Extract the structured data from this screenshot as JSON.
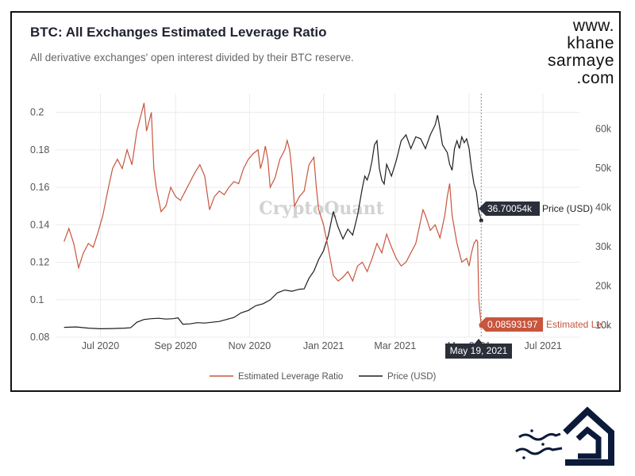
{
  "brand": {
    "lines": [
      "www.",
      "khane",
      "sarmaye",
      ".com"
    ]
  },
  "chart": {
    "title": "BTC: All Exchanges Estimated Leverage Ratio",
    "subtitle": "All derivative exchanges' open interest divided by their BTC reserve.",
    "watermark": "CryptoQuant"
  },
  "tooltips": {
    "price_value": "36.70054k",
    "price_name": "Price (USD)",
    "ratio_value": "0.08593197",
    "ratio_name": "Estimated Le...",
    "date": "May 19, 2021"
  },
  "colors": {
    "ratio": "#c8553d",
    "price": "#1e1e1e",
    "tooltip_dark": "#2a2f3a"
  },
  "logo": {
    "icon": "khanesarmaye-house-logo-icon"
  },
  "chart_data": {
    "type": "line",
    "title": "BTC: All Exchanges Estimated Leverage Ratio",
    "x_start": "2020-06-01",
    "x_end": "2021-05-19",
    "x_ticks": [
      "Jul 2020",
      "Sep 2020",
      "Nov 2020",
      "Jan 2021",
      "Mar 2021",
      "May 2021",
      "Jul 2021"
    ],
    "x_tick_days": [
      30,
      92,
      153,
      214,
      273,
      334,
      395
    ],
    "x_range_days": [
      -7,
      425
    ],
    "y_left": {
      "ticks": [
        0.08,
        0.1,
        0.12,
        0.14,
        0.16,
        0.18,
        0.2
      ],
      "range": [
        0.08,
        0.21
      ]
    },
    "y_right": {
      "ticks": [
        "10k",
        "20k",
        "30k",
        "40k",
        "50k",
        "60k"
      ],
      "tick_values": [
        10000,
        20000,
        30000,
        40000,
        50000,
        60000
      ],
      "range": [
        7000,
        69000
      ]
    },
    "series": [
      {
        "name": "Estimated Leverage Ratio",
        "axis": "left",
        "color": "#c8553d",
        "points": [
          [
            0,
            0.131
          ],
          [
            4,
            0.138
          ],
          [
            8,
            0.13
          ],
          [
            12,
            0.117
          ],
          [
            16,
            0.125
          ],
          [
            20,
            0.13
          ],
          [
            24,
            0.128
          ],
          [
            28,
            0.136
          ],
          [
            32,
            0.145
          ],
          [
            36,
            0.158
          ],
          [
            40,
            0.17
          ],
          [
            44,
            0.175
          ],
          [
            48,
            0.17
          ],
          [
            52,
            0.18
          ],
          [
            56,
            0.172
          ],
          [
            60,
            0.19
          ],
          [
            64,
            0.2
          ],
          [
            66,
            0.205
          ],
          [
            68,
            0.19
          ],
          [
            72,
            0.2
          ],
          [
            74,
            0.17
          ],
          [
            76,
            0.16
          ],
          [
            80,
            0.147
          ],
          [
            84,
            0.15
          ],
          [
            88,
            0.16
          ],
          [
            92,
            0.155
          ],
          [
            96,
            0.153
          ],
          [
            100,
            0.158
          ],
          [
            104,
            0.163
          ],
          [
            108,
            0.168
          ],
          [
            112,
            0.172
          ],
          [
            116,
            0.166
          ],
          [
            120,
            0.148
          ],
          [
            124,
            0.155
          ],
          [
            128,
            0.158
          ],
          [
            132,
            0.156
          ],
          [
            136,
            0.16
          ],
          [
            140,
            0.163
          ],
          [
            144,
            0.162
          ],
          [
            148,
            0.17
          ],
          [
            152,
            0.175
          ],
          [
            156,
            0.178
          ],
          [
            160,
            0.18
          ],
          [
            162,
            0.17
          ],
          [
            164,
            0.175
          ],
          [
            166,
            0.182
          ],
          [
            168,
            0.175
          ],
          [
            170,
            0.16
          ],
          [
            174,
            0.165
          ],
          [
            178,
            0.175
          ],
          [
            182,
            0.18
          ],
          [
            184,
            0.185
          ],
          [
            186,
            0.18
          ],
          [
            188,
            0.168
          ],
          [
            190,
            0.15
          ],
          [
            194,
            0.155
          ],
          [
            198,
            0.158
          ],
          [
            202,
            0.172
          ],
          [
            206,
            0.176
          ],
          [
            208,
            0.16
          ],
          [
            210,
            0.148
          ],
          [
            214,
            0.14
          ],
          [
            218,
            0.127
          ],
          [
            222,
            0.113
          ],
          [
            226,
            0.11
          ],
          [
            230,
            0.112
          ],
          [
            234,
            0.115
          ],
          [
            238,
            0.11
          ],
          [
            242,
            0.118
          ],
          [
            246,
            0.12
          ],
          [
            250,
            0.115
          ],
          [
            254,
            0.122
          ],
          [
            258,
            0.13
          ],
          [
            262,
            0.125
          ],
          [
            266,
            0.135
          ],
          [
            270,
            0.128
          ],
          [
            274,
            0.122
          ],
          [
            278,
            0.118
          ],
          [
            282,
            0.12
          ],
          [
            286,
            0.125
          ],
          [
            290,
            0.13
          ],
          [
            294,
            0.142
          ],
          [
            296,
            0.148
          ],
          [
            298,
            0.145
          ],
          [
            302,
            0.137
          ],
          [
            306,
            0.14
          ],
          [
            310,
            0.133
          ],
          [
            314,
            0.145
          ],
          [
            316,
            0.155
          ],
          [
            318,
            0.162
          ],
          [
            320,
            0.145
          ],
          [
            324,
            0.13
          ],
          [
            326,
            0.125
          ],
          [
            328,
            0.12
          ],
          [
            332,
            0.122
          ],
          [
            334,
            0.118
          ],
          [
            336,
            0.125
          ],
          [
            338,
            0.13
          ],
          [
            340,
            0.132
          ],
          [
            341,
            0.131
          ],
          [
            342,
            0.1
          ],
          [
            344,
            0.086
          ]
        ]
      },
      {
        "name": "Price (USD)",
        "axis": "right",
        "color": "#1e1e1e",
        "points": [
          [
            0,
            9500
          ],
          [
            10,
            9600
          ],
          [
            20,
            9300
          ],
          [
            30,
            9150
          ],
          [
            40,
            9200
          ],
          [
            50,
            9300
          ],
          [
            55,
            9400
          ],
          [
            60,
            10800
          ],
          [
            66,
            11500
          ],
          [
            72,
            11700
          ],
          [
            78,
            11800
          ],
          [
            84,
            11600
          ],
          [
            90,
            11700
          ],
          [
            94,
            11900
          ],
          [
            98,
            10300
          ],
          [
            104,
            10400
          ],
          [
            110,
            10700
          ],
          [
            116,
            10600
          ],
          [
            122,
            10800
          ],
          [
            128,
            11000
          ],
          [
            134,
            11500
          ],
          [
            140,
            12000
          ],
          [
            146,
            13200
          ],
          [
            152,
            13800
          ],
          [
            158,
            15000
          ],
          [
            164,
            15500
          ],
          [
            170,
            16500
          ],
          [
            176,
            18300
          ],
          [
            182,
            19000
          ],
          [
            188,
            18700
          ],
          [
            194,
            19200
          ],
          [
            198,
            19300
          ],
          [
            202,
            22000
          ],
          [
            206,
            23800
          ],
          [
            210,
            26800
          ],
          [
            214,
            29000
          ],
          [
            218,
            33000
          ],
          [
            222,
            39000
          ],
          [
            226,
            35000
          ],
          [
            230,
            32000
          ],
          [
            234,
            34500
          ],
          [
            238,
            33000
          ],
          [
            242,
            38000
          ],
          [
            246,
            45000
          ],
          [
            248,
            48000
          ],
          [
            250,
            47000
          ],
          [
            252,
            49000
          ],
          [
            254,
            52000
          ],
          [
            256,
            56000
          ],
          [
            258,
            57000
          ],
          [
            260,
            50000
          ],
          [
            262,
            47000
          ],
          [
            264,
            46000
          ],
          [
            266,
            51000
          ],
          [
            270,
            48000
          ],
          [
            274,
            52000
          ],
          [
            278,
            57000
          ],
          [
            282,
            58500
          ],
          [
            286,
            55000
          ],
          [
            290,
            58000
          ],
          [
            294,
            57500
          ],
          [
            298,
            55000
          ],
          [
            302,
            58500
          ],
          [
            306,
            61000
          ],
          [
            308,
            63500
          ],
          [
            310,
            60000
          ],
          [
            312,
            56000
          ],
          [
            316,
            54000
          ],
          [
            318,
            51000
          ],
          [
            320,
            49500
          ],
          [
            322,
            55000
          ],
          [
            324,
            57000
          ],
          [
            326,
            55000
          ],
          [
            328,
            58000
          ],
          [
            330,
            56500
          ],
          [
            332,
            57500
          ],
          [
            334,
            55000
          ],
          [
            336,
            50000
          ],
          [
            338,
            46000
          ],
          [
            340,
            44000
          ],
          [
            342,
            39000
          ],
          [
            344,
            36700
          ]
        ]
      }
    ],
    "legend": [
      "Estimated Leverage Ratio",
      "Price (USD)"
    ],
    "legend_position": "bottom-center"
  }
}
